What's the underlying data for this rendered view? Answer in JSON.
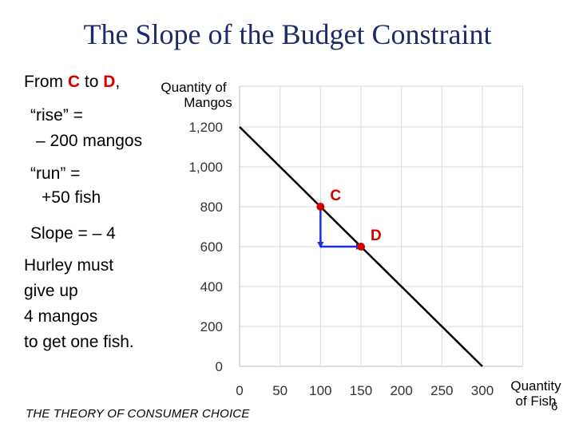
{
  "slide": {
    "title": "The Slope of the Budget Constraint",
    "from_prefix": "From",
    "from_point": "C",
    "from_mid": "to",
    "to_point": "D",
    "from_suffix": ",",
    "rise_line1": "“rise” =",
    "rise_line2": "– 200 mangos",
    "run_line1": "“run” =",
    "run_line2": "+50 fish",
    "slope": "Slope = – 4",
    "hurley_line1": "Hurley must",
    "hurley_line2": "give up",
    "hurley_line3": "4 mangos",
    "hurley_line4": "to get one fish.",
    "footer": "THE THEORY OF CONSUMER CHOICE",
    "page_number": "6"
  },
  "chart_data": {
    "type": "line",
    "title": "",
    "ylabel": "Quantity of Mangos",
    "xlabel": "Quantity of Fish",
    "ylabel_lines": [
      "Quantity of",
      "Mangos"
    ],
    "xlabel_lines": [
      "Quantity",
      "of Fish"
    ],
    "xlim": [
      0,
      350
    ],
    "ylim": [
      0,
      1300
    ],
    "x_ticks": [
      0,
      50,
      100,
      150,
      200,
      250,
      300
    ],
    "x_tick_labels": [
      "0",
      "50",
      "100",
      "150",
      "200",
      "250",
      "300"
    ],
    "y_ticks": [
      0,
      200,
      400,
      600,
      800,
      1000,
      1200
    ],
    "y_tick_labels": [
      "0",
      "200",
      "400",
      "600",
      "800",
      "1,000",
      "1,200"
    ],
    "grid": true,
    "series": [
      {
        "x": [
          0,
          300
        ],
        "y": [
          1200,
          0
        ],
        "color": "#000000"
      }
    ],
    "points": [
      {
        "label": "C",
        "x": 100,
        "y": 800
      },
      {
        "label": "D",
        "x": 150,
        "y": 600
      }
    ],
    "arrows": [
      {
        "from": [
          100,
          800
        ],
        "to": [
          100,
          600
        ]
      },
      {
        "from": [
          100,
          600
        ],
        "to": [
          150,
          600
        ]
      }
    ],
    "colors": {
      "point": "#d40000",
      "arrow": "#1d2fd6",
      "grid": "#d9d9d9",
      "line": "#000000"
    }
  }
}
